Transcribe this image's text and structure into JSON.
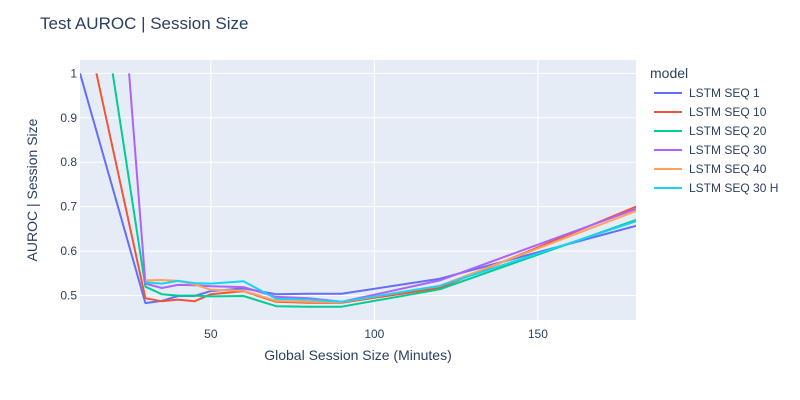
{
  "colors": {
    "plot_bg": "#e5ecf6",
    "grid": "#ffffff",
    "text": "#2a3f5f"
  },
  "chart_data": {
    "type": "line",
    "title": "Test AUROC | Session Size",
    "xlabel": "Global Session Size (Minutes)",
    "ylabel": "AUROC | Session Size",
    "xlim": [
      10,
      180
    ],
    "ylim": [
      0.445,
      1.03
    ],
    "x_ticks": [
      50,
      100,
      150
    ],
    "y_ticks": [
      0.5,
      0.6,
      0.7,
      0.8,
      0.9,
      1
    ],
    "y_tick_labels": [
      "0.5",
      "0.6",
      "0.7",
      "0.8",
      "0.9",
      "1"
    ],
    "grid": true,
    "legend_title": "model",
    "legend_position": "right",
    "series": [
      {
        "name": "LSTM SEQ 1",
        "color": "#636efa",
        "x": [
          10,
          30,
          35,
          40,
          45,
          50,
          60,
          70,
          80,
          90,
          120,
          180
        ],
        "y": [
          1.0,
          0.483,
          0.488,
          0.499,
          0.499,
          0.51,
          0.516,
          0.503,
          0.504,
          0.504,
          0.538,
          0.657
        ]
      },
      {
        "name": "LSTM SEQ 10",
        "color": "#ef553b",
        "x": [
          15,
          30,
          35,
          40,
          45,
          50,
          60,
          70,
          80,
          90,
          120,
          180
        ],
        "y": [
          1.0,
          0.494,
          0.487,
          0.491,
          0.487,
          0.503,
          0.51,
          0.486,
          0.484,
          0.484,
          0.517,
          0.7
        ]
      },
      {
        "name": "LSTM SEQ 20",
        "color": "#00cc96",
        "x": [
          20,
          30,
          35,
          40,
          45,
          50,
          60,
          70,
          80,
          90,
          120,
          180
        ],
        "y": [
          1.0,
          0.52,
          0.503,
          0.5,
          0.5,
          0.498,
          0.499,
          0.476,
          0.475,
          0.475,
          0.514,
          0.67
        ]
      },
      {
        "name": "LSTM SEQ 30",
        "color": "#ab63fa",
        "x": [
          25,
          30,
          35,
          40,
          45,
          50,
          60,
          70,
          80,
          90,
          120,
          180
        ],
        "y": [
          1.0,
          0.527,
          0.517,
          0.524,
          0.523,
          0.521,
          0.519,
          0.497,
          0.494,
          0.486,
          0.534,
          0.695
        ]
      },
      {
        "name": "LSTM SEQ 40",
        "color": "#ffa15a",
        "x": [
          30,
          35,
          40,
          45,
          50,
          60,
          70,
          80,
          90,
          120,
          180
        ],
        "y": [
          0.534,
          0.535,
          0.533,
          0.525,
          0.513,
          0.511,
          0.488,
          0.486,
          0.485,
          0.522,
          0.69
        ]
      },
      {
        "name": "LSTM SEQ 30 H",
        "color": "#19d3f3",
        "x": [
          30,
          35,
          40,
          45,
          50,
          60,
          70,
          80,
          90,
          120,
          180
        ],
        "y": [
          0.53,
          0.527,
          0.533,
          0.528,
          0.527,
          0.532,
          0.493,
          0.491,
          0.486,
          0.522,
          0.667
        ]
      }
    ]
  }
}
